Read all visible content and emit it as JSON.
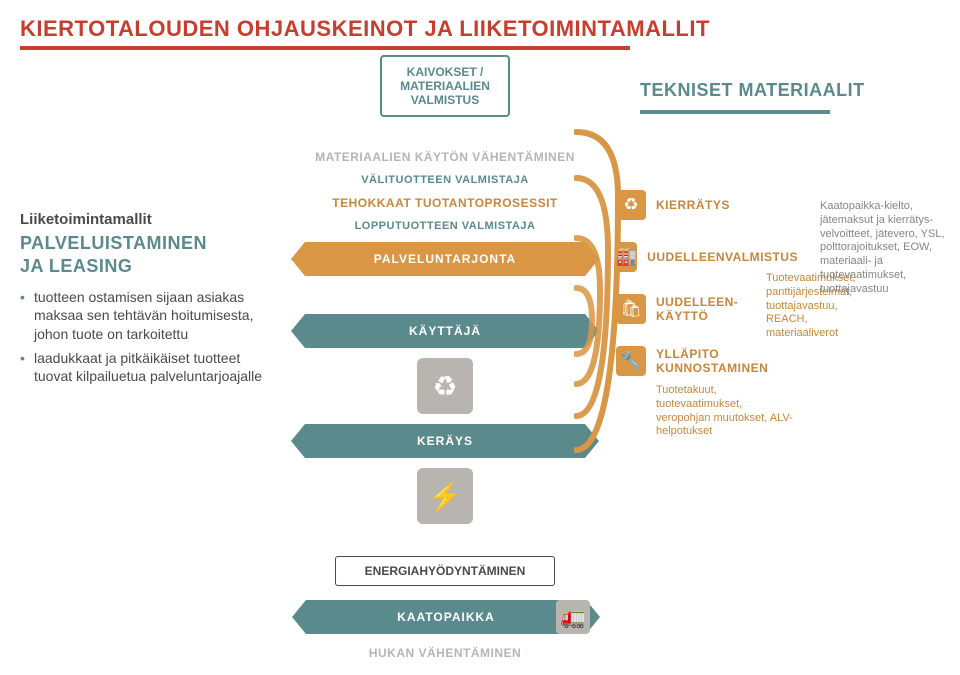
{
  "colors": {
    "header": "#c73d2e",
    "gray": "#b8b5b1",
    "amber": "#d99645",
    "amber_dark": "#c8863a",
    "teal": "#5a8a8c",
    "text": "#4a4a4a",
    "fartext": "#888680",
    "white": "#ffffff"
  },
  "title": "KIERTOTALOUDEN OHJAUSKEINOT JA LIIKETOIMINTAMALLIT",
  "topbox": "KAIVOKSET / MATERIAALIEN VALMISTUS",
  "right_top": "TEKNISET MATERIAALIT",
  "left": {
    "subhead": "Liiketoimintamallit",
    "caps1": "PALVELUISTAMINEN",
    "caps2": "JA LEASING",
    "bullets": [
      "tuotteen ostamisen sijaan asiakas maksaa sen tehtävän hoitumisesta, johon tuote on tarkoitettu",
      "laadukkaat ja pitkäikäiset tuotteet tuovat kilpailuetua palveluntarjoajalle"
    ]
  },
  "center": {
    "gray1": "MATERIAALIEN KÄYTÖN VÄHENTÄMINEN",
    "teal1": "VÄLITUOTTEEN VALMISTAJA",
    "amber1": "TEHOKKAAT TUOTANTOPROSESSIT",
    "teal2": "LOPPUTUOTTEEN VALMISTAJA",
    "ribbon1": "PALVELUNTARJONTA",
    "ribbon2": "KÄYTTÄJÄ",
    "ribbon3": "KERÄYS"
  },
  "right": [
    {
      "icon": "♻",
      "label": "KIERRÄTYS",
      "subtext": ""
    },
    {
      "icon": "🏭",
      "label": "UUDELLEENVALMISTUS",
      "subtext": ""
    },
    {
      "icon": "🛍",
      "label": "UUDELLEEN-\nKÄYTTÖ",
      "subtext": "Tuotevaatimukset, panttijärjestelmät, tuottajavastuu, REACH, materiaaliverot"
    },
    {
      "icon": "🔧",
      "label": "YLLÄPITO\nKUNNOSTAMINEN",
      "subtext": "Tuotetakuut, tuotevaatimukset, veropohjan muutokset, ALV-helpotukset"
    }
  ],
  "far_right": "Kaatopaikka-kielto, jätemaksut ja kierrätys-velvoitteet, jätevero, YSL, polttorajoitukset, EOW, materiaali- ja tuotevaatimukset, tuottajavastuu",
  "bottom": {
    "box": "ENERGIAHYÖDYNTÄMINEN",
    "ribbon": "KAATOPAIKKA",
    "label": "HUKAN VÄHENTÄMINEN"
  }
}
